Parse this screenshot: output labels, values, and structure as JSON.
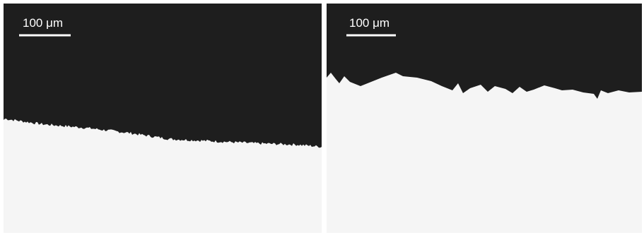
{
  "panels": [
    {
      "scale_bar_label": "100 μm"
    },
    {
      "scale_bar_label": "100 μm"
    }
  ]
}
